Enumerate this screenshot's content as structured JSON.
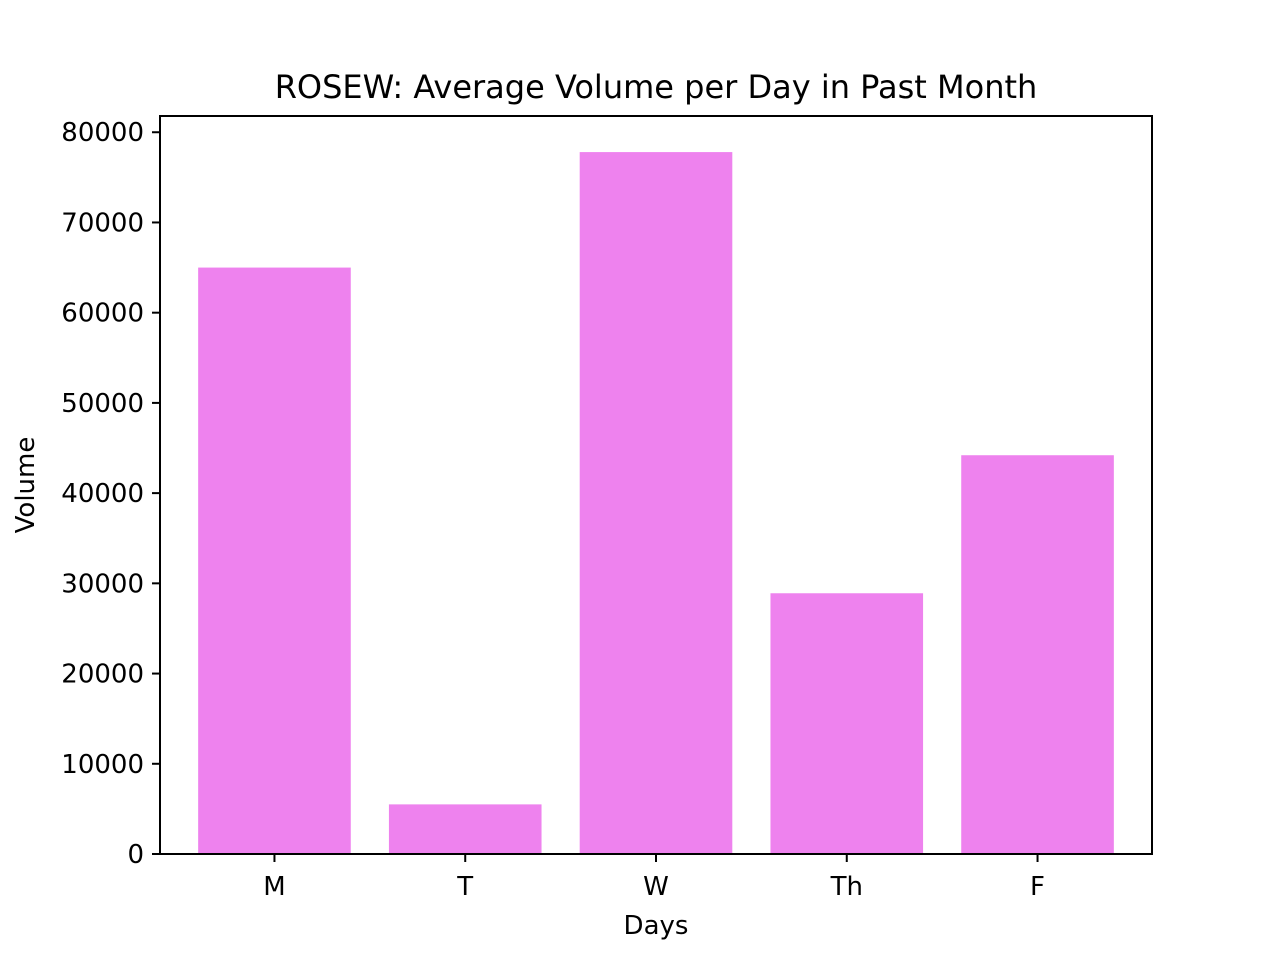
{
  "chart_data": {
    "type": "bar",
    "title": "ROSEW: Average Volume per Day in Past Month",
    "xlabel": "Days",
    "ylabel": "Volume",
    "categories": [
      "M",
      "T",
      "W",
      "Th",
      "F"
    ],
    "values": [
      65000,
      5500,
      77800,
      28900,
      44200
    ],
    "ylim": [
      0,
      81800
    ],
    "yticks": [
      0,
      10000,
      20000,
      30000,
      40000,
      50000,
      60000,
      70000,
      80000
    ],
    "bar_color": "#ee82ee",
    "grid": false,
    "legend": "none"
  }
}
